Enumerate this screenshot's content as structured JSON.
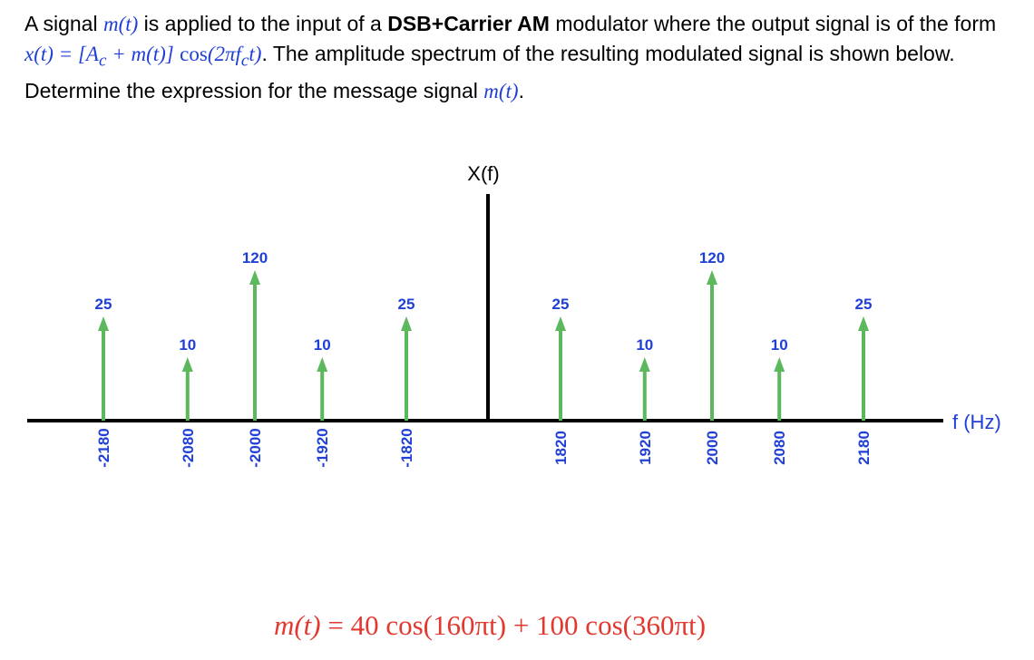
{
  "problem": {
    "intro": "A signal",
    "msg_symbol": "m(t)",
    "mid1": "is applied to the input of a",
    "modulator_bold": "DSB+Carrier AM",
    "mid2": "modulator where the output signal is of the form",
    "form_lhs": "x(t) = [A",
    "form_sub": "c",
    "form_mid": "+ m(t)]",
    "form_cos": "cos",
    "form_arg": "(2πf",
    "form_arg_sub": "c",
    "form_arg_end": "t)",
    "mid3": ". The amplitude spectrum of the resulting modulated signal is shown below. Determine the expression for the message signal",
    "end": "."
  },
  "diagram": {
    "y_axis_label": "X(f)",
    "x_axis_label": "f (Hz)",
    "colors": {
      "arrow": "#5cb85c",
      "label": "#1f3fd6",
      "axis": "#000000",
      "answer": "#e2382f"
    },
    "components": [
      {
        "freq": "-2180",
        "amp": 25
      },
      {
        "freq": "-2080",
        "amp": 10
      },
      {
        "freq": "-2000",
        "amp": 120
      },
      {
        "freq": "-1920",
        "amp": 10
      },
      {
        "freq": "-1820",
        "amp": 25
      },
      {
        "freq": "1820",
        "amp": 25
      },
      {
        "freq": "1920",
        "amp": 10
      },
      {
        "freq": "2000",
        "amp": 120
      },
      {
        "freq": "2080",
        "amp": 10
      },
      {
        "freq": "2180",
        "amp": 25
      }
    ]
  },
  "answer": {
    "lhs": "m(t)",
    "rhs": " = 40 cos(160πt) + 100 cos(360πt)"
  }
}
